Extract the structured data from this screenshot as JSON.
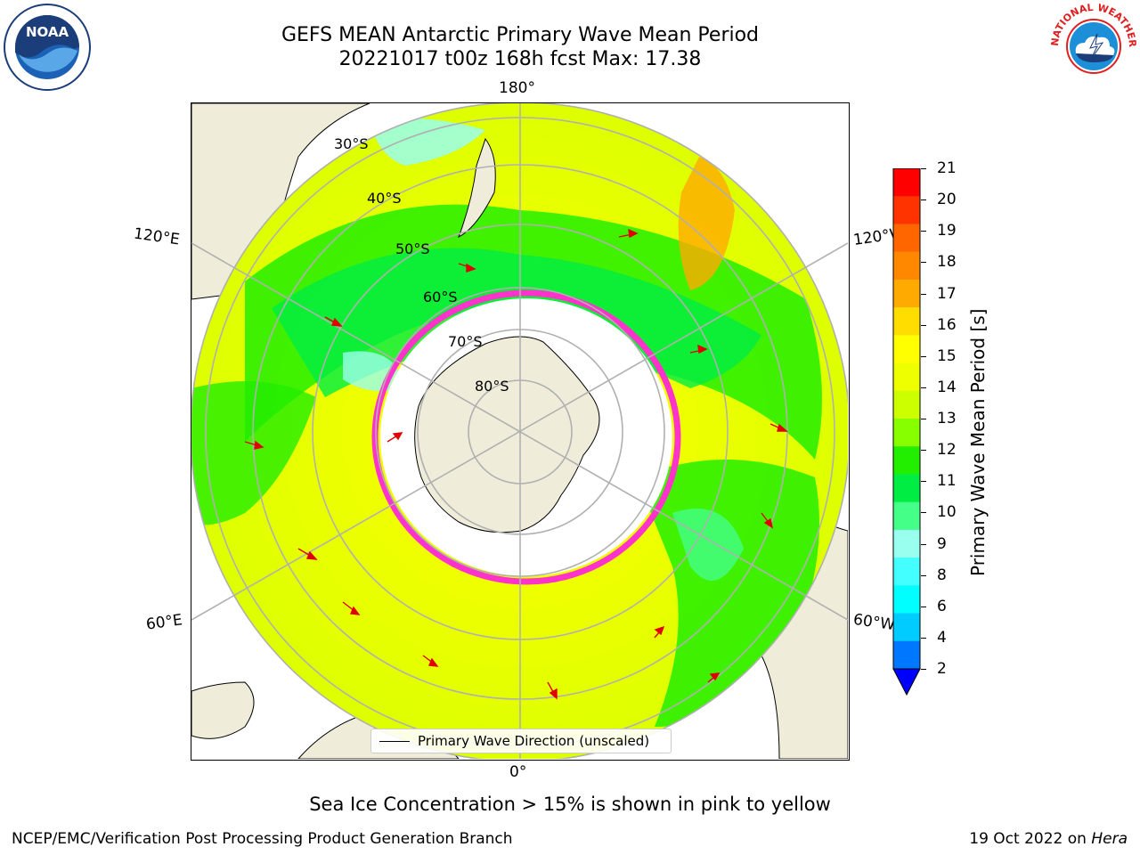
{
  "title": {
    "line1": "GEFS MEAN Antarctic Primary Wave Mean Period",
    "line2": "20221017 t00z 168h fcst   Max: 17.38"
  },
  "map": {
    "lon_labels": {
      "top": "180°",
      "bottom": "0°",
      "upper_left": "120°E",
      "upper_right": "120°W",
      "lower_left": "60°E",
      "lower_right": "60°W"
    },
    "lat_labels": [
      "30°S",
      "40°S",
      "50°S",
      "60°S",
      "70°S",
      "80°S"
    ],
    "legend": "Primary Wave Direction (unscaled)"
  },
  "colorbar": {
    "title": "Primary Wave Mean Period [s]",
    "ticks": [
      "21",
      "20",
      "19",
      "18",
      "17",
      "16",
      "15",
      "14",
      "13",
      "12",
      "11",
      "10",
      "9",
      "8",
      "6",
      "4",
      "2"
    ],
    "colors": [
      "#ff0000",
      "#ff3300",
      "#ff6600",
      "#ff8800",
      "#ffaa00",
      "#ffdd00",
      "#ffff00",
      "#eeff00",
      "#ccff00",
      "#88ff00",
      "#22ee00",
      "#00ee44",
      "#44ff88",
      "#99ffee",
      "#44ffff",
      "#00ffff",
      "#00ccff",
      "#0077ff"
    ],
    "extend_color": "#0000ff"
  },
  "caption": "Sea Ice Concentration > 15% is shown in pink to yellow",
  "footer": {
    "left": "NCEP/EMC/Verification Post Processing Product Generation Branch",
    "right_date": "19 Oct 2022 on",
    "right_host": "Hera"
  },
  "logos": {
    "noaa_text": "NOAA",
    "nws_text": "NATIONAL WEATHER SERVICE"
  }
}
